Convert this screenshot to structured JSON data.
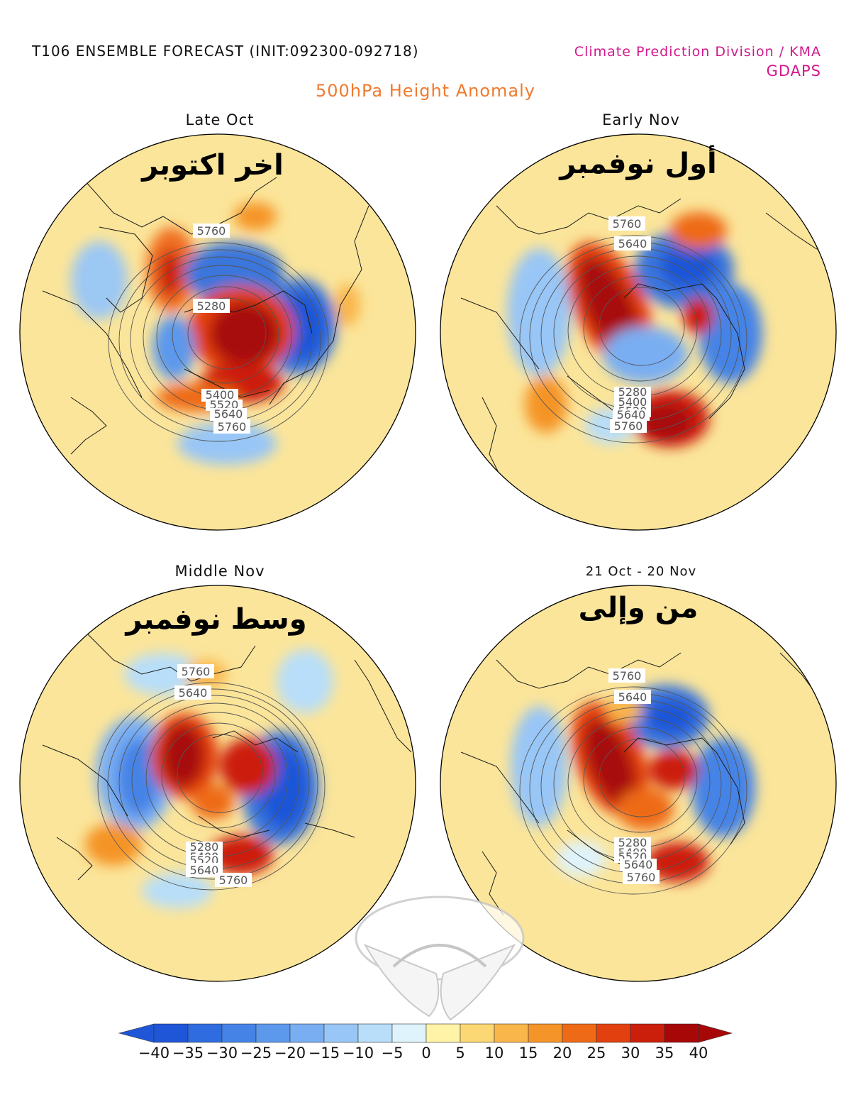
{
  "header": {
    "title": "T106 ENSEMBLE FORECAST (INIT:092300-092718)",
    "organization": "Climate Prediction Division / KMA",
    "model": "GDAPS",
    "variable": "500hPa Height Anomaly"
  },
  "panels": [
    {
      "title": "Late Oct",
      "arabic_title": "اخر اكتوبر",
      "contour_labels": [
        "5760",
        "5280",
        "5400",
        "5520",
        "5640",
        "5760"
      ]
    },
    {
      "title": "Early Nov",
      "arabic_title": "أول نوفمبر",
      "contour_labels": [
        "5760",
        "5640",
        "5280",
        "5400",
        "5520",
        "5640",
        "5760"
      ]
    },
    {
      "title": "Middle Nov",
      "arabic_title": "وسط نوفمبر",
      "contour_labels": [
        "5760",
        "5640",
        "5280",
        "5400",
        "5520",
        "5640",
        "5760"
      ]
    },
    {
      "title": "21 Oct - 20 Nov",
      "arabic_title": "من وإلى",
      "contour_labels": [
        "5760",
        "5640",
        "5280",
        "5400",
        "5520",
        "5640",
        "5760"
      ]
    }
  ],
  "colorbar": {
    "labels": [
      "-40",
      "-35",
      "-30",
      "-25",
      "-20",
      "-15",
      "-10",
      "-5",
      "0",
      "5",
      "10",
      "15",
      "20",
      "25",
      "30",
      "35",
      "40"
    ],
    "colors": [
      "#1f56d8",
      "#2f6ce0",
      "#4583e6",
      "#5c98ec",
      "#79aef2",
      "#98c6f6",
      "#b8def9",
      "#dff3fc",
      "#fff3a8",
      "#fcd874",
      "#f9b64b",
      "#f59428",
      "#ee6a17",
      "#e3400f",
      "#cc1f0b",
      "#a80707"
    ]
  },
  "colors": {
    "background": "#fbe59a",
    "land_outline": "#1a1a1a",
    "contour": "#555555"
  },
  "icons": {
    "watermark": "handshake-logo-watermark"
  }
}
